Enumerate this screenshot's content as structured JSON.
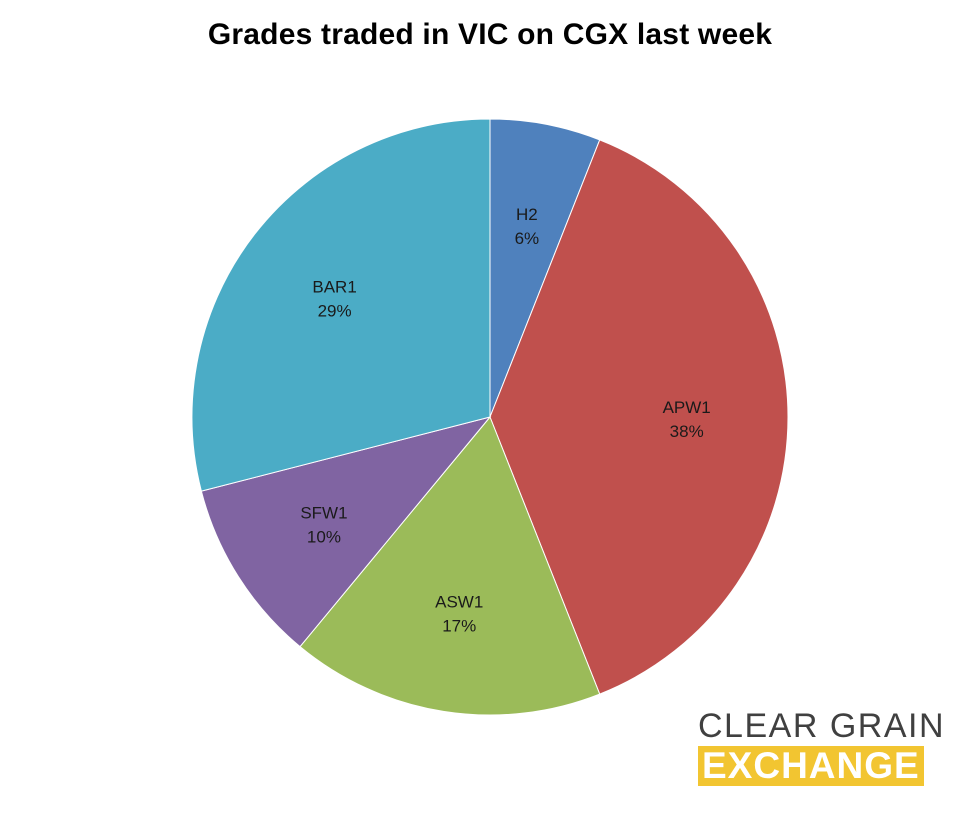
{
  "chart_data": {
    "type": "pie",
    "title": "Grades traded in VIC on CGX last week",
    "slices": [
      {
        "label": "H2",
        "value": 6,
        "value_label": "6%",
        "color": "#4f81bd"
      },
      {
        "label": "APW1",
        "value": 38,
        "value_label": "38%",
        "color": "#c0504d"
      },
      {
        "label": "ASW1",
        "value": 17,
        "value_label": "17%",
        "color": "#9bbb59"
      },
      {
        "label": "SFW1",
        "value": 10,
        "value_label": "10%",
        "color": "#8064a2"
      },
      {
        "label": "BAR1",
        "value": 29,
        "value_label": "29%",
        "color": "#4bacc6"
      }
    ],
    "start_angle": "12 o'clock",
    "direction": "clockwise",
    "legend": "none"
  },
  "logo": {
    "line1": "CLEAR GRAIN",
    "line2": "EXCHANGE",
    "accent_color": "#f2c531"
  }
}
